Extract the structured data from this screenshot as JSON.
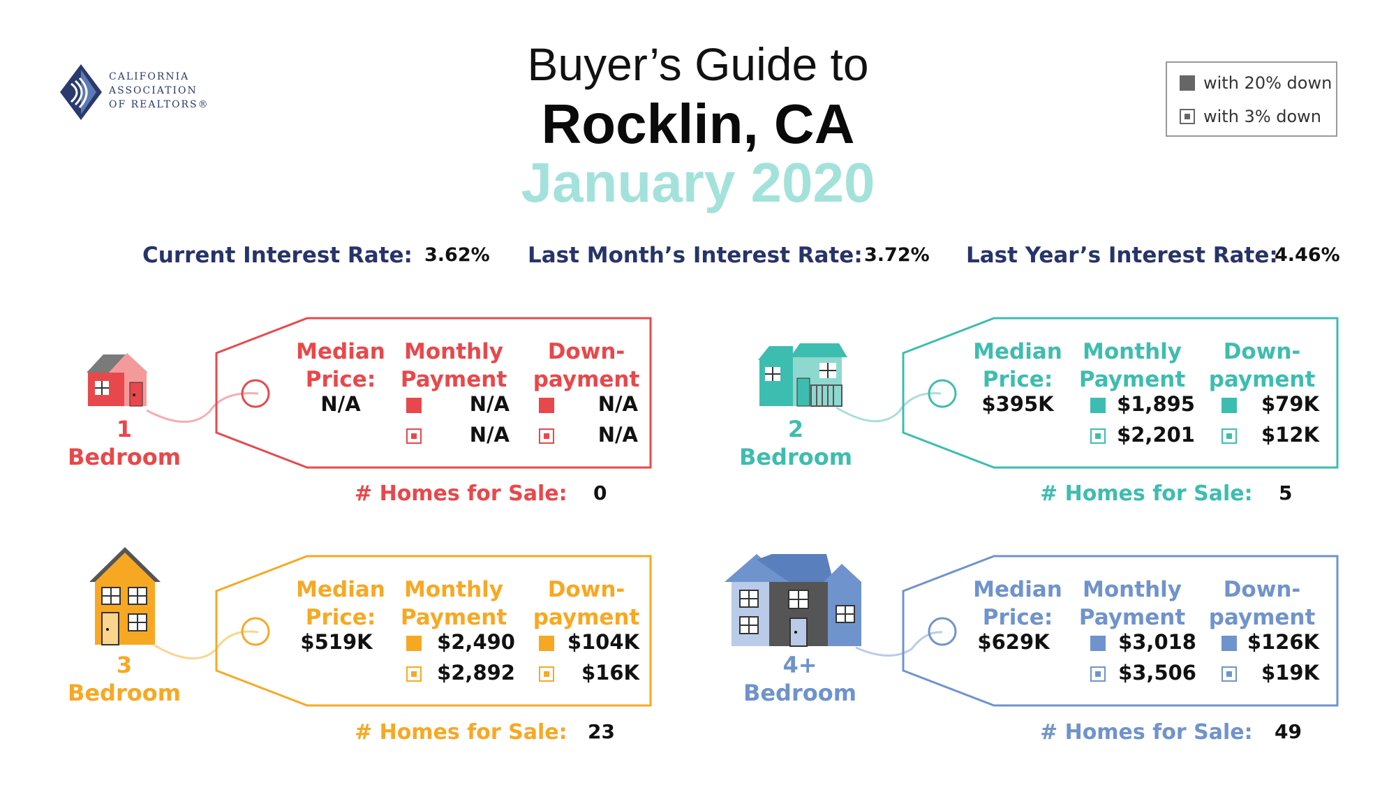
{
  "header": {
    "logo_lines": [
      "CALIFORNIA",
      "ASSOCIATION",
      "OF REALTORS®"
    ],
    "title_line1": "Buyer’s Guide to",
    "title_line2": "Rocklin, CA",
    "title_line3": "January 2020",
    "accent_color": "#a3e2da"
  },
  "legend": {
    "solid_label": "with 20% down",
    "open_label": "with 3% down"
  },
  "rates": {
    "current_label": "Current Interest Rate:",
    "current_value": "3.62%",
    "last_month_label": "Last Month’s Interest Rate:",
    "last_month_value": "3.72%",
    "last_year_label": "Last Year’s Interest Rate:",
    "last_year_value": "4.46%",
    "label_color": "#27346a"
  },
  "col_headers": {
    "median_1": "Median",
    "median_2": "Price:",
    "monthly_1": "Monthly",
    "monthly_2": "Payment",
    "down_1": "Down-",
    "down_2": "payment"
  },
  "homes_label": "# Homes for Sale:",
  "cards": [
    {
      "bed_num": "1",
      "bed_label": "Bedroom",
      "color": "#e8484b",
      "median": "N/A",
      "monthly_20": "N/A",
      "monthly_3": "N/A",
      "down_20": "N/A",
      "down_3": "N/A",
      "homes": "0"
    },
    {
      "bed_num": "2",
      "bed_label": "Bedroom",
      "color": "#3dbdb0",
      "median": "$395K",
      "monthly_20": "$1,895",
      "monthly_3": "$2,201",
      "down_20": "$79K",
      "down_3": "$12K",
      "homes": "5"
    },
    {
      "bed_num": "3",
      "bed_label": "Bedroom",
      "color": "#f7a823",
      "median": "$519K",
      "monthly_20": "$2,490",
      "monthly_3": "$2,892",
      "down_20": "$104K",
      "down_3": "$16K",
      "homes": "23"
    },
    {
      "bed_num": "4+",
      "bed_label": "Bedroom",
      "color": "#6f93cc",
      "median": "$629K",
      "monthly_20": "$3,018",
      "monthly_3": "$3,506",
      "down_20": "$126K",
      "down_3": "$19K",
      "homes": "49"
    }
  ]
}
